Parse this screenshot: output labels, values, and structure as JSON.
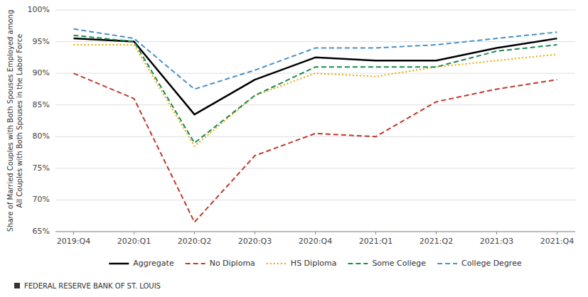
{
  "chart_data": {
    "type": "line",
    "y_label": "Share of Married Couples with Both Spouses Employed among\nAll Couples with Both Spouses in the Labor Force",
    "categories": [
      "2019:Q4",
      "2020:Q1",
      "2020:Q2",
      "2020:Q3",
      "2020:Q4",
      "2021:Q1",
      "2021:Q2",
      "2021:Q3",
      "2021:Q4"
    ],
    "series": [
      {
        "name": "Aggregate",
        "color": "#000000",
        "line_style": "solid",
        "values": [
          95.5,
          95.0,
          83.5,
          89.0,
          92.5,
          92.0,
          92.0,
          94.0,
          95.5
        ]
      },
      {
        "name": "No Diploma",
        "color": "#c0392b",
        "line_style": "dashed",
        "values": [
          90.0,
          86.0,
          66.5,
          77.0,
          80.5,
          80.0,
          85.5,
          87.5,
          89.0
        ]
      },
      {
        "name": "HS Diploma",
        "color": "#e5a800",
        "line_style": "dotted",
        "values": [
          94.5,
          94.5,
          78.5,
          86.5,
          90.0,
          89.5,
          91.0,
          92.0,
          93.0
        ]
      },
      {
        "name": "Some College",
        "color": "#1a8a50",
        "line_style": "dashed",
        "values": [
          96.0,
          95.0,
          79.0,
          86.5,
          91.0,
          91.0,
          91.0,
          93.5,
          94.5
        ]
      },
      {
        "name": "College Degree",
        "color": "#4a90c8",
        "line_style": "dashed",
        "values": [
          97.0,
          95.5,
          87.5,
          90.5,
          94.0,
          94.0,
          94.5,
          95.5,
          96.5
        ]
      }
    ],
    "ylim": [
      65,
      100
    ],
    "yticks": [
      {
        "value": 65,
        "label": "65%"
      },
      {
        "value": 70,
        "label": "70%"
      },
      {
        "value": 75,
        "label": "75%"
      },
      {
        "value": 80,
        "label": "80%"
      },
      {
        "value": 85,
        "label": "85%"
      },
      {
        "value": 90,
        "label": "90%"
      },
      {
        "value": 95,
        "label": "95%"
      },
      {
        "value": 100,
        "label": "100%"
      }
    ],
    "grid": true,
    "legend": "bottom",
    "annotations": [
      "FEDERAL RESERVE BANK OF ST. LOUIS"
    ]
  }
}
